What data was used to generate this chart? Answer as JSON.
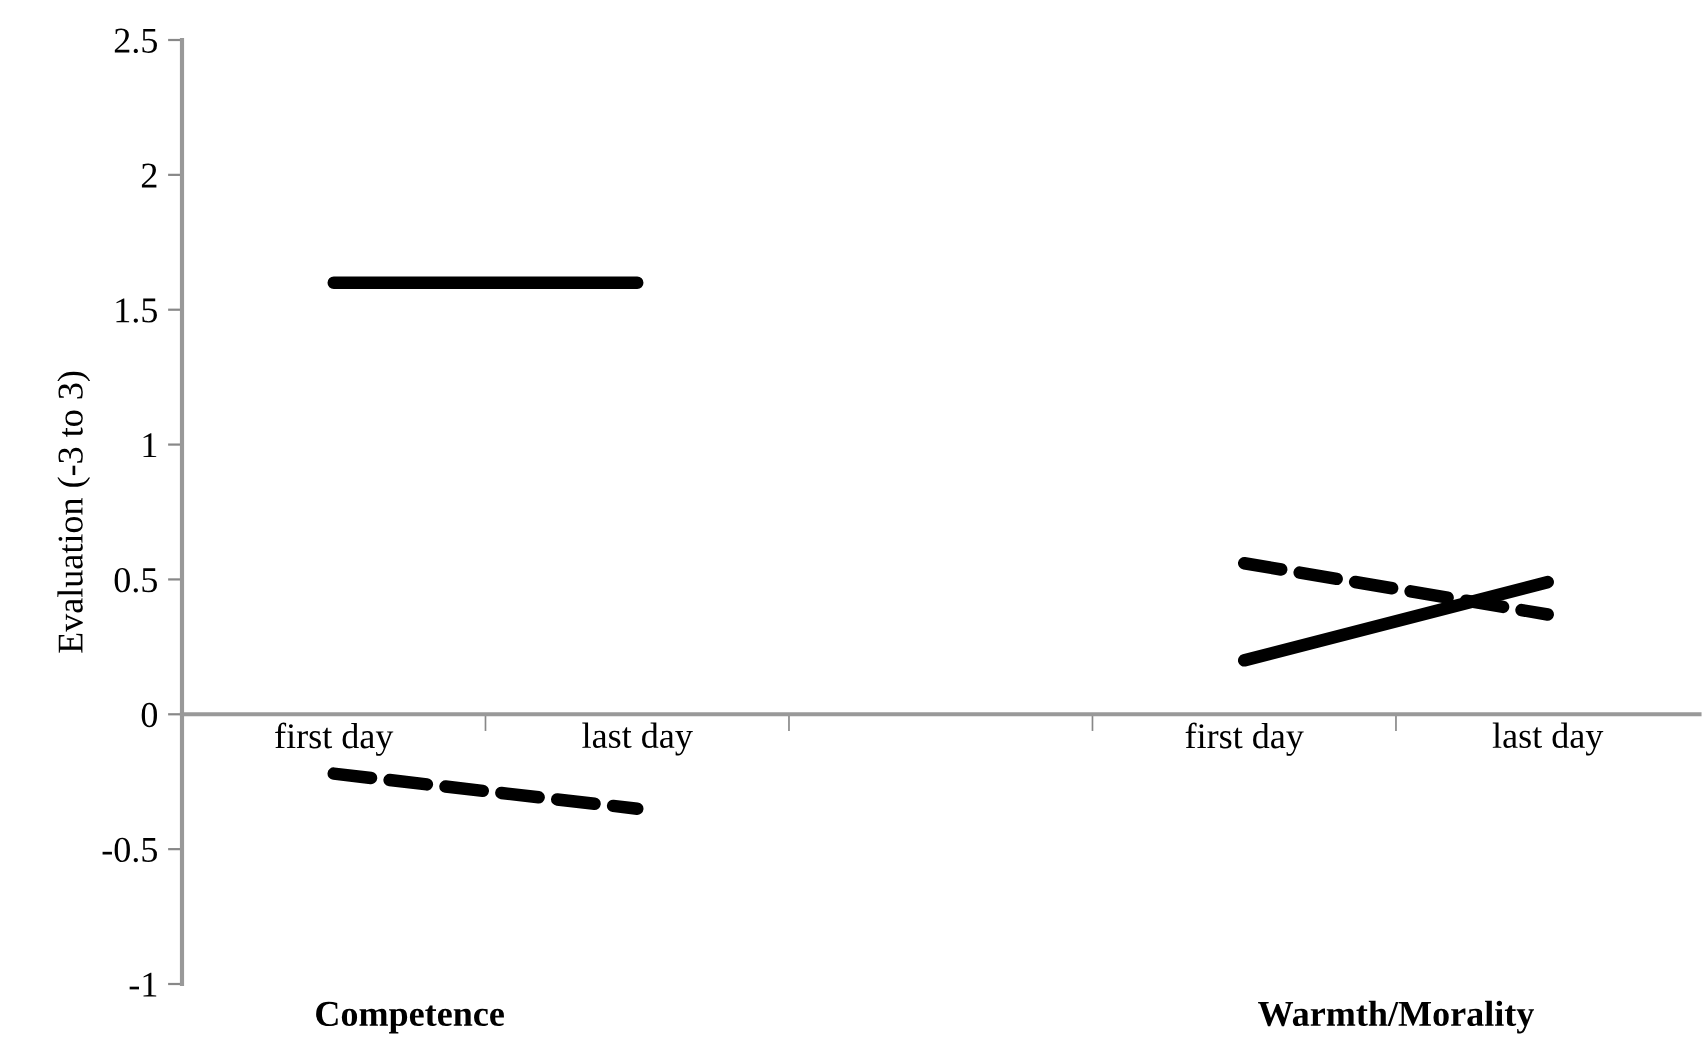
{
  "chart_data": {
    "type": "line",
    "ylabel": "Evaluation (-3 to 3)",
    "categories": [
      "first day",
      "last day",
      null,
      "first day",
      "last day"
    ],
    "series": [
      {
        "color": "#000000",
        "line_style": "solid",
        "values": [
          1.6,
          1.6,
          null,
          0.2,
          0.49
        ]
      },
      {
        "color": "#000000",
        "line_style": "dashed",
        "values": [
          -0.22,
          -0.35,
          null,
          0.56,
          0.37
        ]
      }
    ],
    "ylim": [
      -1,
      2.5
    ],
    "yticks": [
      -1,
      -0.5,
      0,
      0.5,
      1,
      1.5,
      2,
      2.5
    ],
    "grid": false,
    "legend": false,
    "marker": "none",
    "annotations": [
      "Competence",
      "Warmth/Morality"
    ]
  }
}
